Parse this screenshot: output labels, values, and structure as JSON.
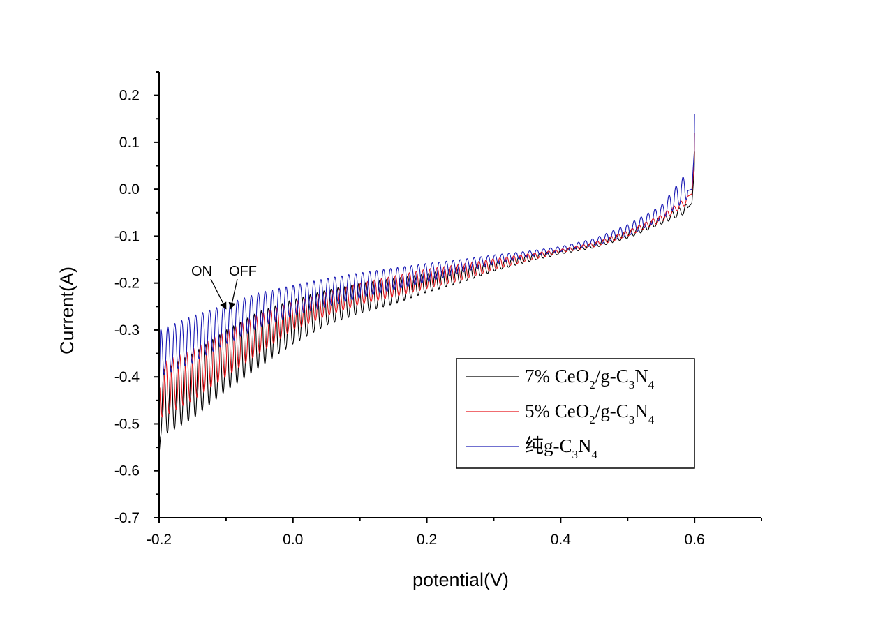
{
  "chart_data": {
    "type": "line",
    "title": "",
    "xlabel": "potential(V)",
    "ylabel": "Current(A)",
    "xlim": [
      -0.2,
      0.7
    ],
    "ylim": [
      -0.7,
      0.25
    ],
    "grid": false,
    "x_ticks": [
      -0.2,
      0.0,
      0.2,
      0.4,
      0.6
    ],
    "x_tick_labels": [
      "-0.2",
      "0.0",
      "0.2",
      "0.4",
      "0.6"
    ],
    "x_minor_ticks": [
      -0.1,
      0.1,
      0.3,
      0.5,
      0.7
    ],
    "y_ticks": [
      0.2,
      0.1,
      0.0,
      -0.1,
      -0.2,
      -0.3,
      -0.4,
      -0.5,
      -0.6,
      -0.7
    ],
    "y_tick_labels": [
      "0.2",
      "0.1",
      "0.0",
      "-0.1",
      "-0.2",
      "-0.3",
      "-0.4",
      "-0.5",
      "-0.6",
      "-0.7"
    ],
    "y_minor_ticks": [
      0.25,
      0.15,
      0.05,
      -0.05,
      -0.15,
      -0.25,
      -0.35,
      -0.45,
      -0.55,
      -0.65
    ],
    "legend_position": "lower-right",
    "chopping_period_V": 0.0104,
    "series": [
      {
        "name": "7% CeO2/g-C3N4",
        "label_parts": [
          [
            "7% CeO",
            ""
          ],
          [
            "2",
            "sub"
          ],
          [
            "/g-C",
            ""
          ],
          [
            "3",
            "sub"
          ],
          [
            "N",
            ""
          ],
          [
            "4",
            "sub"
          ]
        ],
        "color": "#000000",
        "phase": 0.55,
        "start_value": -0.565,
        "end_value": 0.08,
        "envelope": {
          "x": [
            -0.2,
            -0.15,
            -0.1,
            -0.05,
            0.0,
            0.05,
            0.1,
            0.15,
            0.2,
            0.25,
            0.3,
            0.35,
            0.4,
            0.45,
            0.5,
            0.55,
            0.59
          ],
          "upper": [
            -0.39,
            -0.35,
            -0.3,
            -0.26,
            -0.235,
            -0.215,
            -0.2,
            -0.19,
            -0.18,
            -0.165,
            -0.155,
            -0.14,
            -0.13,
            -0.115,
            -0.09,
            -0.06,
            -0.03
          ],
          "lower": [
            -0.53,
            -0.49,
            -0.43,
            -0.38,
            -0.33,
            -0.29,
            -0.265,
            -0.245,
            -0.22,
            -0.2,
            -0.175,
            -0.155,
            -0.138,
            -0.125,
            -0.105,
            -0.075,
            -0.05
          ]
        }
      },
      {
        "name": "5% CeO2/g-C3N4",
        "label_parts": [
          [
            "5% CeO",
            ""
          ],
          [
            "2",
            "sub"
          ],
          [
            "/g-C",
            ""
          ],
          [
            "3",
            "sub"
          ],
          [
            "N",
            ""
          ],
          [
            "4",
            "sub"
          ]
        ],
        "color": "#e8141b",
        "phase": 0.3,
        "start_value": -0.5,
        "end_value": 0.12,
        "envelope": {
          "x": [
            -0.2,
            -0.15,
            -0.1,
            -0.05,
            0.0,
            0.05,
            0.1,
            0.15,
            0.2,
            0.25,
            0.3,
            0.35,
            0.4,
            0.45,
            0.5,
            0.55,
            0.59
          ],
          "upper": [
            -0.37,
            -0.34,
            -0.3,
            -0.265,
            -0.24,
            -0.22,
            -0.2,
            -0.185,
            -0.17,
            -0.16,
            -0.148,
            -0.138,
            -0.128,
            -0.113,
            -0.088,
            -0.055,
            -0.015
          ],
          "lower": [
            -0.49,
            -0.45,
            -0.4,
            -0.35,
            -0.3,
            -0.27,
            -0.245,
            -0.23,
            -0.212,
            -0.195,
            -0.172,
            -0.153,
            -0.135,
            -0.123,
            -0.1,
            -0.07,
            -0.03
          ]
        }
      },
      {
        "name": "纯g-C3N4",
        "label_parts": [
          [
            "纯g-C",
            ""
          ],
          [
            "3",
            "sub"
          ],
          [
            "N",
            ""
          ],
          [
            "4",
            "sub"
          ]
        ],
        "color": "#1a1ab4",
        "phase": 0.0,
        "start_value": -0.42,
        "end_value": 0.16,
        "envelope": {
          "x": [
            -0.2,
            -0.15,
            -0.1,
            -0.05,
            0.0,
            0.05,
            0.1,
            0.15,
            0.2,
            0.25,
            0.3,
            0.35,
            0.4,
            0.45,
            0.5,
            0.55,
            0.59
          ],
          "upper": [
            -0.3,
            -0.27,
            -0.245,
            -0.22,
            -0.205,
            -0.19,
            -0.178,
            -0.168,
            -0.158,
            -0.15,
            -0.14,
            -0.132,
            -0.122,
            -0.105,
            -0.075,
            -0.035,
            0.04
          ],
          "lower": [
            -0.4,
            -0.37,
            -0.33,
            -0.295,
            -0.27,
            -0.25,
            -0.232,
            -0.215,
            -0.198,
            -0.178,
            -0.16,
            -0.145,
            -0.133,
            -0.12,
            -0.1,
            -0.065,
            -0.02
          ]
        }
      }
    ],
    "annotations": [
      {
        "text": "ON",
        "points_to": [
          -0.1,
          -0.255
        ]
      },
      {
        "text": "OFF",
        "points_to": [
          -0.093,
          -0.255
        ]
      }
    ]
  }
}
